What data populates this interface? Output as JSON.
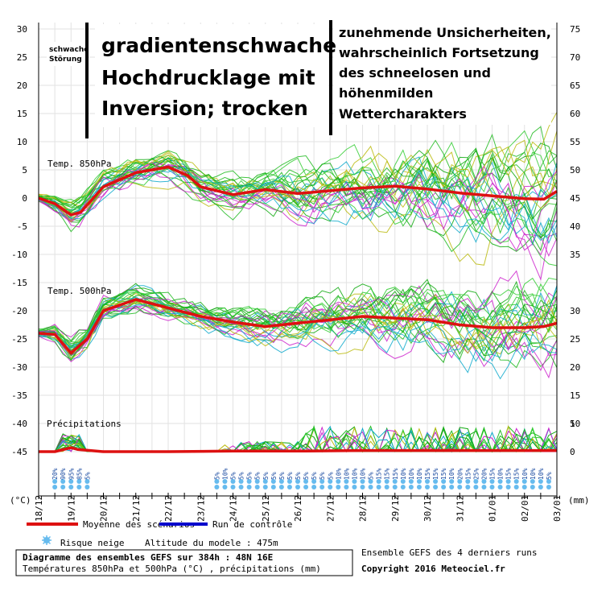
{
  "chart_data": {
    "type": "line",
    "left_axis": {
      "unit": "(°C)",
      "ticks": [
        30,
        25,
        20,
        15,
        10,
        5,
        0,
        -5,
        -10,
        -15,
        -20,
        -25,
        -30,
        -35,
        -40,
        -45
      ]
    },
    "right_axis": {
      "unit": "(mm)",
      "ticks_upper": [
        75,
        70,
        65,
        60,
        55,
        50,
        45,
        40,
        35
      ],
      "ticks_middle": [
        30,
        25,
        20,
        15,
        10
      ],
      "ticks_lower": [
        5,
        0
      ]
    },
    "x_dates": [
      "18/12",
      "19/12",
      "20/12",
      "21/12",
      "22/12",
      "23/12",
      "24/12",
      "25/12",
      "26/12",
      "27/12",
      "28/12",
      "29/12",
      "30/12",
      "31/12",
      "01/01",
      "02/01",
      "03/01"
    ],
    "panels": {
      "t850": "Temp. 850hPa",
      "t500": "Temp. 500hPa",
      "precip": "Précipitations"
    },
    "mean_850": [
      [
        0,
        0
      ],
      [
        0.5,
        -1
      ],
      [
        1,
        -3
      ],
      [
        1.3,
        -2.5
      ],
      [
        2,
        2
      ],
      [
        3,
        4.5
      ],
      [
        4,
        5.5
      ],
      [
        4.6,
        4
      ],
      [
        5,
        2
      ],
      [
        6,
        0.6
      ],
      [
        7,
        1.5
      ],
      [
        8,
        0.8
      ],
      [
        9,
        1.3
      ],
      [
        10,
        1.8
      ],
      [
        11,
        2.1
      ],
      [
        12,
        1.6
      ],
      [
        13,
        0.9
      ],
      [
        14,
        0.4
      ],
      [
        15,
        -0.1
      ],
      [
        15.6,
        -0.2
      ],
      [
        16,
        1.2
      ]
    ],
    "mean_500": [
      [
        0,
        -24
      ],
      [
        0.5,
        -24.2
      ],
      [
        1,
        -27.5
      ],
      [
        1.5,
        -25
      ],
      [
        2,
        -20
      ],
      [
        3,
        -18
      ],
      [
        4,
        -19.5
      ],
      [
        5,
        -21
      ],
      [
        6,
        -22
      ],
      [
        7,
        -22.8
      ],
      [
        8,
        -22.2
      ],
      [
        9,
        -21.6
      ],
      [
        10,
        -21
      ],
      [
        11,
        -21.3
      ],
      [
        12,
        -21.6
      ],
      [
        13,
        -22.5
      ],
      [
        14,
        -23
      ],
      [
        15,
        -23
      ],
      [
        15.6,
        -22.8
      ],
      [
        16,
        -22.2
      ]
    ],
    "mean_precip": [
      [
        0,
        -45
      ],
      [
        0.5,
        -45
      ],
      [
        1,
        -44.3
      ],
      [
        1.2,
        -44.6
      ],
      [
        2,
        -45
      ],
      [
        4,
        -45
      ],
      [
        6,
        -44.9
      ],
      [
        8,
        -44.9
      ],
      [
        10,
        -44.8
      ],
      [
        12,
        -44.8
      ],
      [
        14,
        -44.8
      ],
      [
        16,
        -44.8
      ]
    ],
    "snow_risk": [
      {
        "x": 0.5,
        "labels": [
          "20%"
        ]
      },
      {
        "x": 0.75,
        "labels": [
          "90%"
        ]
      },
      {
        "x": 1.0,
        "labels": [
          "95%"
        ]
      },
      {
        "x": 1.25,
        "labels": [
          "85%"
        ]
      },
      {
        "x": 1.5,
        "labels": [
          "5%"
        ]
      },
      {
        "x": 5.5,
        "labels": [
          "5%"
        ]
      },
      {
        "x": 5.75,
        "labels": [
          "10%"
        ]
      },
      {
        "x": 6.0,
        "labels": [
          "5%"
        ]
      },
      {
        "x": 6.25,
        "labels": [
          "5%"
        ]
      },
      {
        "x": 6.5,
        "labels": [
          "5%"
        ]
      },
      {
        "x": 6.75,
        "labels": [
          "5%"
        ]
      },
      {
        "x": 7.0,
        "labels": [
          "5%"
        ]
      },
      {
        "x": 7.25,
        "labels": [
          "5%"
        ]
      },
      {
        "x": 7.5,
        "labels": [
          "5%"
        ]
      },
      {
        "x": 7.75,
        "labels": [
          "5%"
        ]
      },
      {
        "x": 8.0,
        "labels": [
          "5%"
        ]
      },
      {
        "x": 8.25,
        "labels": [
          "5%"
        ]
      },
      {
        "x": 8.5,
        "labels": [
          "5%"
        ]
      },
      {
        "x": 8.75,
        "labels": [
          "5%"
        ]
      },
      {
        "x": 9.0,
        "labels": [
          "5%"
        ]
      },
      {
        "x": 9.25,
        "labels": [
          "10%"
        ]
      },
      {
        "x": 9.5,
        "labels": [
          "10%"
        ]
      },
      {
        "x": 9.75,
        "labels": [
          "10%"
        ]
      },
      {
        "x": 10.0,
        "labels": [
          "10%"
        ]
      },
      {
        "x": 10.25,
        "labels": [
          "5%"
        ]
      },
      {
        "x": 10.5,
        "labels": [
          "15%"
        ]
      },
      {
        "x": 10.75,
        "labels": [
          "15%"
        ]
      },
      {
        "x": 11.0,
        "labels": [
          "15%"
        ]
      },
      {
        "x": 11.25,
        "labels": [
          "10%"
        ]
      },
      {
        "x": 11.5,
        "labels": [
          "10%"
        ]
      },
      {
        "x": 11.75,
        "labels": [
          "10%"
        ]
      },
      {
        "x": 12.0,
        "labels": [
          "15%"
        ]
      },
      {
        "x": 12.25,
        "labels": [
          "15%"
        ]
      },
      {
        "x": 12.5,
        "labels": [
          "15%"
        ]
      },
      {
        "x": 12.75,
        "labels": [
          "10%"
        ]
      },
      {
        "x": 13.0,
        "labels": [
          "20%"
        ]
      },
      {
        "x": 13.25,
        "labels": [
          "15%"
        ]
      },
      {
        "x": 13.5,
        "labels": [
          "25%"
        ]
      },
      {
        "x": 13.75,
        "labels": [
          "20%"
        ]
      },
      {
        "x": 14.0,
        "labels": [
          "15%"
        ]
      },
      {
        "x": 14.25,
        "labels": [
          "10%"
        ]
      },
      {
        "x": 14.5,
        "labels": [
          "15%"
        ]
      },
      {
        "x": 14.75,
        "labels": [
          "15%"
        ]
      },
      {
        "x": 15.0,
        "labels": [
          "10%"
        ]
      },
      {
        "x": 15.25,
        "labels": [
          "10%"
        ]
      },
      {
        "x": 15.5,
        "labels": [
          "10%"
        ]
      },
      {
        "x": 15.75,
        "labels": [
          "5%"
        ]
      }
    ],
    "colors": {
      "mean": "#dd1111",
      "control": "#0000cc",
      "members": [
        "#11aa11",
        "#22bb22",
        "#cc22cc",
        "#bbbb11",
        "#11aacc",
        "#33cc33"
      ],
      "snow": "#66bbee"
    }
  },
  "annotations": {
    "weak_disturbance": [
      "schwache",
      "Störung"
    ],
    "phase1": [
      "gradientenschwache",
      "Hochdrucklage mit",
      "Inversion; trocken"
    ],
    "phase2": [
      "zunehmende Unsicherheiten,",
      "wahrscheinlich Fortsetzung",
      "des schneelosen und",
      "höhenmilden",
      "Wettercharakters"
    ]
  },
  "legend": {
    "mean": "Moyenne des scénarios",
    "control": "Run de contrôle",
    "snow": "Risque neige",
    "altitude": "Altitude du modele : 475m"
  },
  "info": {
    "title": "Diagramme des ensembles GEFS sur 384h : 48N 16E",
    "subtitle": "Températures 850hPa et 500hPa (°C) , précipitations (mm)",
    "ensemble": "Ensemble GEFS des 4 derniers runs",
    "copyright": "Copyright 2016 Meteociel.fr"
  }
}
